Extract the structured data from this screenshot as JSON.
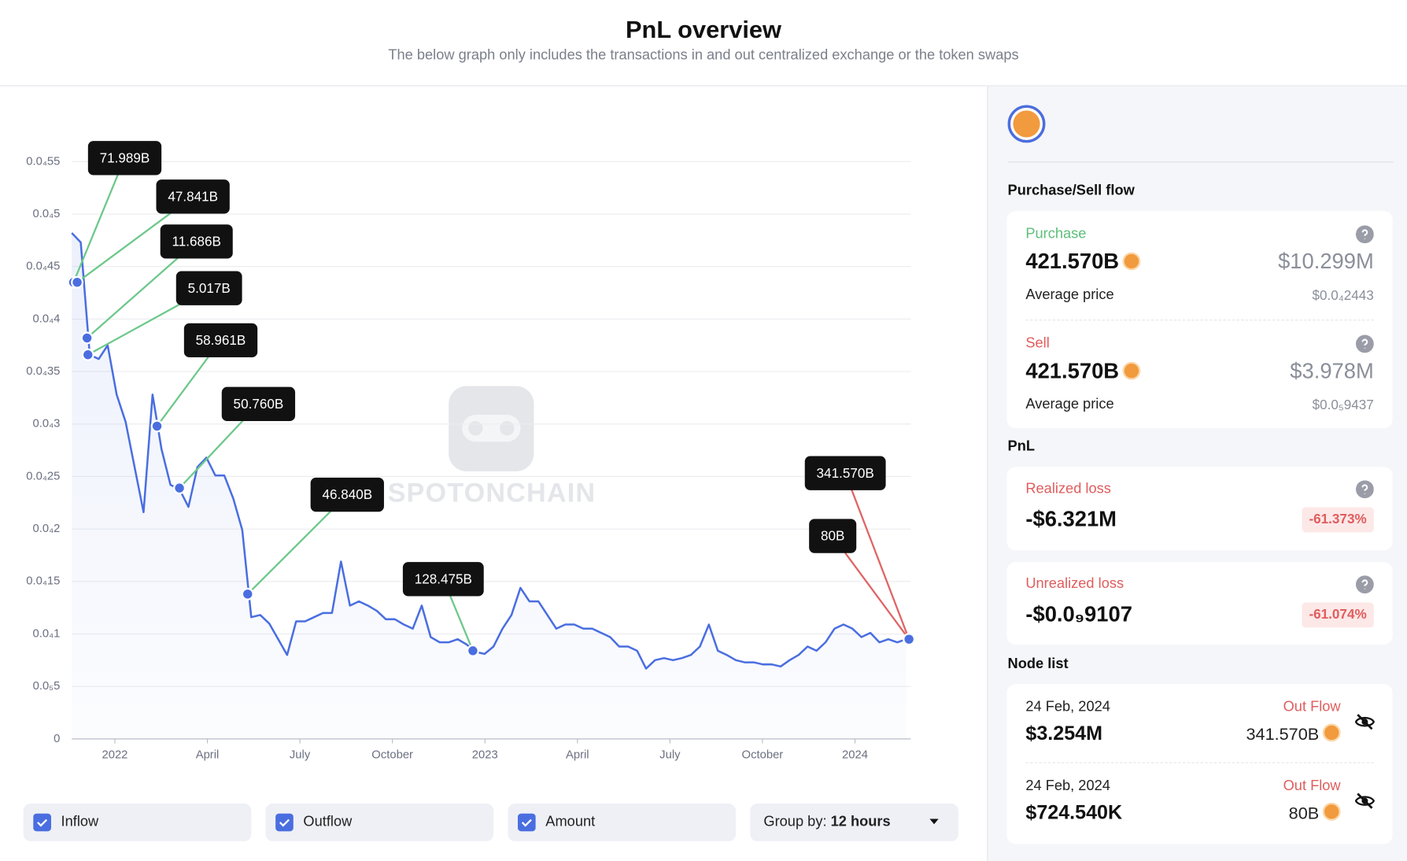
{
  "header": {
    "title": "PnL overview",
    "subtitle": "The below graph only includes the transactions in and out centralized exchange or the token swaps"
  },
  "chart_data": {
    "type": "line",
    "watermark": "SPOTONCHAIN",
    "grid": true,
    "ylim": [
      0,
      5.5e-05
    ],
    "yticks": [
      0,
      {
        "value": 5e-06,
        "label": "0.0₅5"
      },
      {
        "value": 1e-05,
        "label": "0.0₄1"
      },
      {
        "value": 1.5e-05,
        "label": "0.0₄15"
      },
      {
        "value": 2e-05,
        "label": "0.0₄2"
      },
      {
        "value": 2.5e-05,
        "label": "0.0₄25"
      },
      {
        "value": 3e-05,
        "label": "0.0₄3"
      },
      {
        "value": 3.5e-05,
        "label": "0.0₄35"
      },
      {
        "value": 4e-05,
        "label": "0.0₄4"
      },
      {
        "value": 4.5e-05,
        "label": "0.0₄45"
      },
      {
        "value": 5e-05,
        "label": "0.0₄5"
      },
      {
        "value": 5.5e-05,
        "label": "0.0₄55"
      }
    ],
    "xtick_labels": [
      "2022",
      "April",
      "July",
      "October",
      "2023",
      "April",
      "July",
      "October",
      "2024"
    ],
    "series": [
      {
        "color": "#4a6ee0",
        "values": [
          4.82e-05,
          4.73e-05,
          3.66e-05,
          3.62e-05,
          3.75e-05,
          3.28e-05,
          3.02e-05,
          2.59e-05,
          2.16e-05,
          3.28e-05,
          2.76e-05,
          2.42e-05,
          2.38e-05,
          2.21e-05,
          2.59e-05,
          2.68e-05,
          2.51e-05,
          2.51e-05,
          2.29e-05,
          1.99e-05,
          1.16e-05,
          1.18e-05,
          1.1e-05,
          9.5e-06,
          8e-06,
          1.12e-05,
          1.12e-05,
          1.16e-05,
          1.2e-05,
          1.2e-05,
          1.69e-05,
          1.27e-05,
          1.31e-05,
          1.27e-05,
          1.22e-05,
          1.14e-05,
          1.14e-05,
          1.09e-05,
          1.05e-05,
          1.27e-05,
          9.7e-06,
          9.2e-06,
          9.2e-06,
          9.5e-06,
          9e-06,
          8.3e-06,
          8.1e-06,
          8.8e-06,
          1.05e-05,
          1.18e-05,
          1.44e-05,
          1.31e-05,
          1.31e-05,
          1.18e-05,
          1.05e-05,
          1.09e-05,
          1.09e-05,
          1.05e-05,
          1.05e-05,
          1.01e-05,
          9.7e-06,
          8.8e-06,
          8.8e-06,
          8.4e-06,
          6.7e-06,
          7.5e-06,
          7.7e-06,
          7.5e-06,
          7.7e-06,
          8e-06,
          8.8e-06,
          1.09e-05,
          8.4e-06,
          8e-06,
          7.5e-06,
          7.3e-06,
          7.3e-06,
          7.1e-06,
          7.1e-06,
          6.9e-06,
          7.5e-06,
          8e-06,
          8.8e-06,
          8.4e-06,
          9.2e-06,
          1.05e-05,
          1.09e-05,
          1.05e-05,
          9.7e-06,
          1.01e-05,
          9.2e-06,
          9.5e-06,
          9.2e-06,
          9.5e-06
        ]
      }
    ],
    "markers": [
      {
        "label": "71.989B",
        "value": 4.35e-05,
        "color": "#6cc88a"
      },
      {
        "label": "47.841B",
        "value": 4.35e-05,
        "color": "#6cc88a"
      },
      {
        "label": "11.686B",
        "value": 3.82e-05,
        "color": "#6cc88a"
      },
      {
        "label": "5.017B",
        "value": 3.66e-05,
        "color": "#6cc88a"
      },
      {
        "label": "58.961B",
        "value": 2.98e-05,
        "color": "#6cc88a"
      },
      {
        "label": "50.760B",
        "value": 2.39e-05,
        "color": "#6cc88a"
      },
      {
        "label": "46.840B",
        "value": 1.38e-05,
        "color": "#6cc88a"
      },
      {
        "label": "128.475B",
        "value": 8.4e-06,
        "color": "#6cc88a"
      },
      {
        "label": "341.570B",
        "value": 9.5e-06,
        "color": "#e06464"
      },
      {
        "label": "80B",
        "value": 9.5e-06,
        "color": "#e06464"
      }
    ]
  },
  "controls": {
    "checkboxes": [
      "Inflow",
      "Outflow",
      "Amount"
    ],
    "group_by_label": "Group by:",
    "group_by_value": "12 hours"
  },
  "panel": {
    "flow_title": "Purchase/Sell flow",
    "purchase": {
      "label": "Purchase",
      "amount": "421.570B",
      "usd": "$10.299M",
      "avg_label": "Average price",
      "avg": "$0.0₄2443"
    },
    "sell": {
      "label": "Sell",
      "amount": "421.570B",
      "usd": "$3.978M",
      "avg_label": "Average price",
      "avg": "$0.0₅9437"
    },
    "pnl_title": "PnL",
    "realized": {
      "label": "Realized loss",
      "value": "-$6.321M",
      "percent": "-61.373%"
    },
    "unrealized": {
      "label": "Unrealized loss",
      "value": "-$0.0₉9107",
      "percent": "-61.074%"
    },
    "node_title": "Node list",
    "nodes": [
      {
        "date": "24 Feb, 2024",
        "type": "Out Flow",
        "usd": "$3.254M",
        "amount": "341.570B"
      },
      {
        "date": "24 Feb, 2024",
        "type": "Out Flow",
        "usd": "$724.540K",
        "amount": "80B"
      }
    ]
  }
}
